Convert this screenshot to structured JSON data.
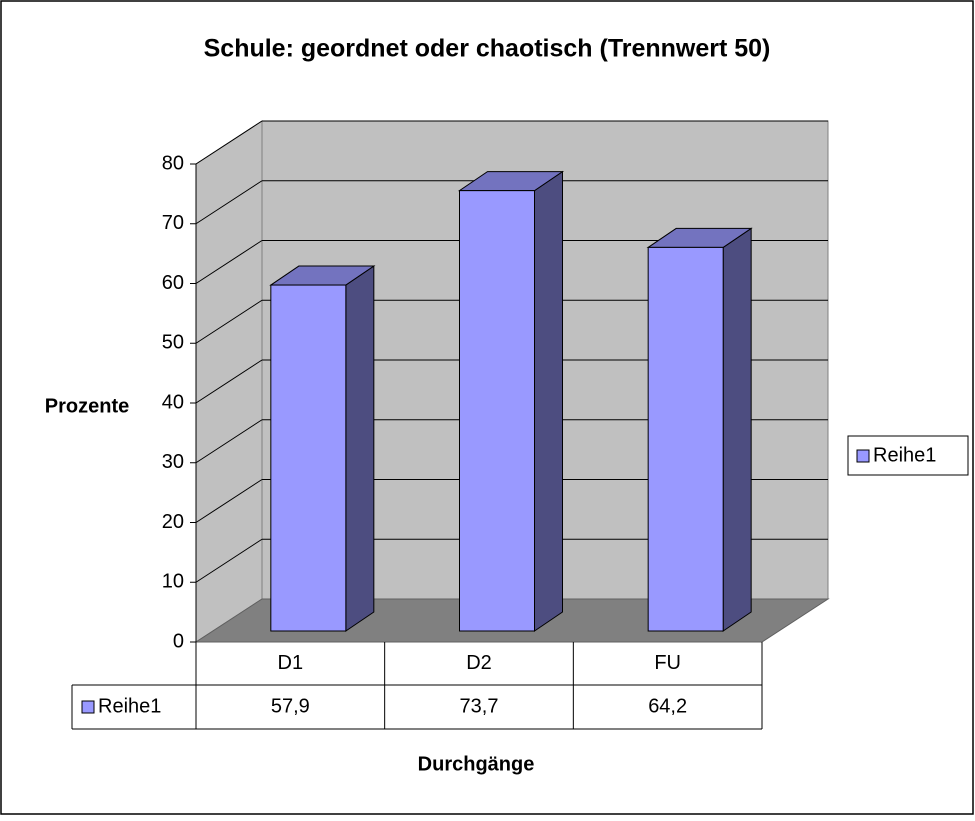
{
  "chart_data": {
    "type": "bar3d",
    "title": "Schule: geordnet oder chaotisch (Trennwert 50)",
    "ylabel": "Prozente",
    "xlabel": "Durchgänge",
    "categories": [
      "D1",
      "D2",
      "FU"
    ],
    "series": [
      {
        "name": "Reihe1",
        "color": "#9999ff",
        "values": [
          57.9,
          73.7,
          64.2
        ],
        "value_labels": [
          "57,9",
          "73,7",
          "64,2"
        ]
      }
    ],
    "ylim": [
      0,
      80
    ],
    "yticks": [
      0,
      10,
      20,
      30,
      40,
      50,
      60,
      70,
      80
    ],
    "grid": true,
    "legend": "right",
    "data_table": true
  }
}
